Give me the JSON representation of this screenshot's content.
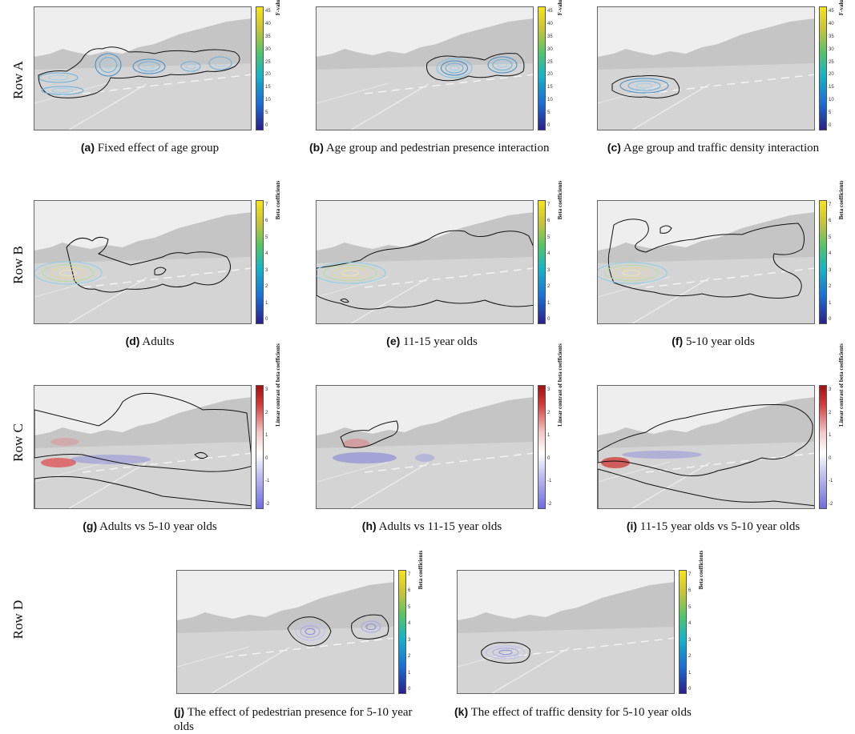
{
  "rows": [
    "Row A",
    "Row B",
    "Row C",
    "Row D"
  ],
  "colorbars": {
    "fvalue": {
      "title": "F-value",
      "ticks": [
        "45",
        "40",
        "35",
        "30",
        "25",
        "20",
        "15",
        "10",
        "5",
        "0"
      ]
    },
    "beta": {
      "title": "Beta coefficients",
      "ticks": [
        "7",
        "6",
        "5",
        "4",
        "3",
        "2",
        "1",
        "0"
      ]
    },
    "contrast": {
      "title": "Linear contrast of beta coefficients",
      "ticks": [
        "3",
        "2",
        "1",
        "0",
        "-1",
        "-2"
      ]
    }
  },
  "panels": {
    "a": {
      "letter": "(a)",
      "text": "Fixed effect of age group"
    },
    "b": {
      "letter": "(b)",
      "text": "Age group and pedestrian presence interaction"
    },
    "c": {
      "letter": "(c)",
      "text": "Age group and traffic density interaction"
    },
    "d": {
      "letter": "(d)",
      "text": "Adults"
    },
    "e": {
      "letter": "(e)",
      "text": "11-15 year olds"
    },
    "f": {
      "letter": "(f)",
      "text": "5-10 year olds"
    },
    "g": {
      "letter": "(g)",
      "text": "Adults vs 5-10 year olds"
    },
    "h": {
      "letter": "(h)",
      "text": "Adults vs 11-15 year olds"
    },
    "i": {
      "letter": "(i)",
      "text": "11-15 year olds vs 5-10 year olds"
    },
    "j": {
      "letter": "(j)",
      "text": "The effect of pedestrian presence for 5-10 year olds"
    },
    "k": {
      "letter": "(k)",
      "text": "The effect of traffic density for 5-10 year olds"
    }
  }
}
